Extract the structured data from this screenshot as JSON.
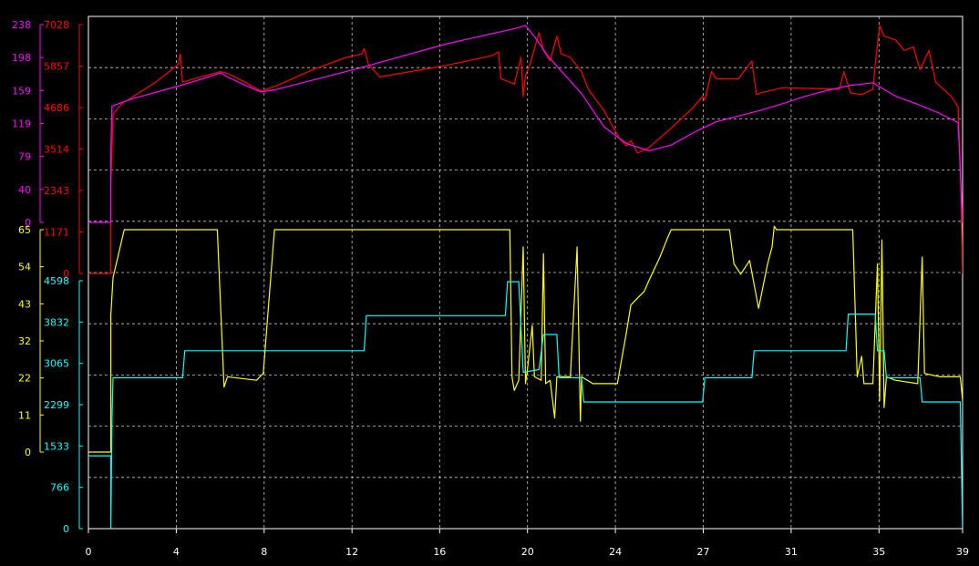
{
  "chart_data": {
    "type": "line",
    "background": "#000000",
    "grid": true,
    "x_axis": {
      "range": [
        0,
        39
      ],
      "ticks": [
        {
          "v": 0,
          "label": "0"
        },
        {
          "v": 3.92,
          "label": "4"
        },
        {
          "v": 7.84,
          "label": "8"
        },
        {
          "v": 11.76,
          "label": "12"
        },
        {
          "v": 15.67,
          "label": "16"
        },
        {
          "v": 19.59,
          "label": "20"
        },
        {
          "v": 23.51,
          "label": "24"
        },
        {
          "v": 27.43,
          "label": "27"
        },
        {
          "v": 31.35,
          "label": "31"
        },
        {
          "v": 35.27,
          "label": "35"
        },
        {
          "v": 39,
          "label": "39"
        }
      ]
    },
    "axes": [
      {
        "id": "ax1",
        "color": "#ff00ff",
        "range": [
          0,
          238
        ],
        "labels": [
          "0",
          "40",
          "79",
          "119",
          "159",
          "198",
          "238"
        ]
      },
      {
        "id": "ax2",
        "color": "#ff0000",
        "range": [
          0,
          7028
        ],
        "labels": [
          "0",
          "1171",
          "2343",
          "3514",
          "4686",
          "5857",
          "7028"
        ]
      },
      {
        "id": "ax3",
        "color": "#ffff00",
        "range": [
          0,
          65
        ],
        "labels": [
          "0",
          "11",
          "22",
          "32",
          "43",
          "54",
          "65"
        ]
      },
      {
        "id": "ax4",
        "color": "#00ffff",
        "range": [
          0,
          4598
        ],
        "labels": [
          "0",
          "766",
          "1533",
          "2299",
          "3065",
          "3832",
          "4598"
        ]
      }
    ],
    "series": [
      {
        "axis": "ax2",
        "color": "#ff0000",
        "points": [
          [
            0,
            0
          ],
          [
            1,
            0
          ],
          [
            1,
            2500
          ],
          [
            1.1,
            4500
          ],
          [
            1.5,
            4800
          ],
          [
            2,
            5000
          ],
          [
            3,
            5400
          ],
          [
            4,
            5900
          ],
          [
            4.1,
            6200
          ],
          [
            4.2,
            5400
          ],
          [
            5,
            5550
          ],
          [
            5.9,
            5700
          ],
          [
            6.2,
            5650
          ],
          [
            7,
            5400
          ],
          [
            7.7,
            5150
          ],
          [
            8.4,
            5300
          ],
          [
            10,
            5750
          ],
          [
            11.5,
            6100
          ],
          [
            12.2,
            6200
          ],
          [
            12.3,
            6350
          ],
          [
            12.5,
            5900
          ],
          [
            13,
            5550
          ],
          [
            16,
            5880
          ],
          [
            18,
            6150
          ],
          [
            18.3,
            6250
          ],
          [
            18.4,
            5500
          ],
          [
            19,
            5350
          ],
          [
            19.3,
            6100
          ],
          [
            19.4,
            5000
          ],
          [
            19.5,
            5600
          ],
          [
            19.7,
            5900
          ],
          [
            20.1,
            6800
          ],
          [
            20.3,
            6300
          ],
          [
            20.6,
            6000
          ],
          [
            20.9,
            6700
          ],
          [
            21.1,
            6200
          ],
          [
            21.5,
            6100
          ],
          [
            22,
            5700
          ],
          [
            22.3,
            5200
          ],
          [
            23,
            4600
          ],
          [
            23.7,
            3800
          ],
          [
            24,
            3600
          ],
          [
            24.2,
            3750
          ],
          [
            24.5,
            3400
          ],
          [
            25,
            3550
          ],
          [
            26,
            4100
          ],
          [
            27,
            4700
          ],
          [
            27.4,
            5000
          ],
          [
            27.5,
            4900
          ],
          [
            27.8,
            5700
          ],
          [
            28,
            5500
          ],
          [
            29,
            5500
          ],
          [
            29.6,
            6000
          ],
          [
            29.8,
            5050
          ],
          [
            30,
            5100
          ],
          [
            31,
            5250
          ],
          [
            33.5,
            5200
          ],
          [
            33.7,
            5700
          ],
          [
            34,
            5100
          ],
          [
            34.5,
            5050
          ],
          [
            35,
            5200
          ],
          [
            35.1,
            5900
          ],
          [
            35.3,
            7000
          ],
          [
            35.5,
            6700
          ],
          [
            36,
            6600
          ],
          [
            36.4,
            6300
          ],
          [
            36.8,
            6400
          ],
          [
            37.1,
            5750
          ],
          [
            37.5,
            6300
          ],
          [
            37.8,
            5400
          ],
          [
            38.5,
            5000
          ],
          [
            38.8,
            4700
          ],
          [
            38.9,
            3000
          ],
          [
            39,
            0
          ]
        ]
      },
      {
        "axis": "ax1",
        "color": "#ff00ff",
        "points": [
          [
            0,
            0
          ],
          [
            1,
            0
          ],
          [
            1,
            85
          ],
          [
            1.05,
            140
          ],
          [
            2,
            149
          ],
          [
            4,
            164
          ],
          [
            5,
            172
          ],
          [
            5.9,
            180
          ],
          [
            6.2,
            175
          ],
          [
            7,
            165
          ],
          [
            7.7,
            157
          ],
          [
            8.4,
            160
          ],
          [
            12,
            185
          ],
          [
            16,
            215
          ],
          [
            18,
            227
          ],
          [
            19,
            233
          ],
          [
            19.5,
            237
          ],
          [
            20,
            220
          ],
          [
            20.5,
            200
          ],
          [
            21,
            185
          ],
          [
            22,
            155
          ],
          [
            22.5,
            135
          ],
          [
            23,
            115
          ],
          [
            24,
            95
          ],
          [
            24.8,
            88
          ],
          [
            25,
            86
          ],
          [
            26,
            93
          ],
          [
            27,
            108
          ],
          [
            28,
            121
          ],
          [
            29,
            128
          ],
          [
            30,
            135
          ],
          [
            31,
            143
          ],
          [
            32,
            152
          ],
          [
            33,
            159
          ],
          [
            34,
            165
          ],
          [
            35,
            168
          ],
          [
            35.5,
            160
          ],
          [
            36,
            152
          ],
          [
            37,
            142
          ],
          [
            38,
            131
          ],
          [
            38.8,
            120
          ],
          [
            39,
            0
          ]
        ]
      },
      {
        "axis": "ax3",
        "color": "#ffff00",
        "points": [
          [
            0,
            0
          ],
          [
            1,
            0
          ],
          [
            1,
            40
          ],
          [
            1.1,
            51
          ],
          [
            1.6,
            65
          ],
          [
            5.75,
            65
          ],
          [
            6.05,
            19
          ],
          [
            6.2,
            22
          ],
          [
            7.5,
            21
          ],
          [
            7.8,
            23
          ],
          [
            8.3,
            65
          ],
          [
            18.8,
            65
          ],
          [
            18.9,
            22
          ],
          [
            19,
            18
          ],
          [
            19.2,
            21
          ],
          [
            19.4,
            60
          ],
          [
            19.5,
            20
          ],
          [
            19.6,
            25
          ],
          [
            19.8,
            37
          ],
          [
            19.9,
            22
          ],
          [
            20.2,
            21
          ],
          [
            20.3,
            58
          ],
          [
            20.4,
            20
          ],
          [
            20.6,
            21
          ],
          [
            20.8,
            10
          ],
          [
            20.9,
            22
          ],
          [
            21.5,
            22
          ],
          [
            21.8,
            60
          ],
          [
            21.95,
            9
          ],
          [
            22,
            22
          ],
          [
            22.5,
            20
          ],
          [
            23,
            20
          ],
          [
            23.6,
            20
          ],
          [
            24,
            35
          ],
          [
            24.2,
            43
          ],
          [
            24.5,
            45
          ],
          [
            24.8,
            47
          ],
          [
            25,
            50
          ],
          [
            25.5,
            57
          ],
          [
            25.8,
            62
          ],
          [
            26,
            65
          ],
          [
            28.6,
            65
          ],
          [
            28.8,
            55
          ],
          [
            29.1,
            52
          ],
          [
            29.5,
            56
          ],
          [
            29.9,
            42
          ],
          [
            30.3,
            55
          ],
          [
            30.5,
            60
          ],
          [
            30.6,
            66
          ],
          [
            30.7,
            65
          ],
          [
            34.1,
            65
          ],
          [
            34.3,
            22
          ],
          [
            34.5,
            28
          ],
          [
            34.6,
            20
          ],
          [
            35,
            20
          ],
          [
            35.2,
            55
          ],
          [
            35.3,
            15
          ],
          [
            35.4,
            62
          ],
          [
            35.5,
            13
          ],
          [
            35.6,
            22
          ],
          [
            36,
            21
          ],
          [
            37,
            20
          ],
          [
            37.2,
            57
          ],
          [
            37.3,
            23
          ],
          [
            38,
            22
          ],
          [
            38.9,
            22
          ],
          [
            39,
            15
          ]
        ]
      },
      {
        "axis": "ax4",
        "color": "#00ffff",
        "points": [
          [
            0,
            1350
          ],
          [
            1,
            1350
          ],
          [
            1,
            0
          ],
          [
            1.05,
            2000
          ],
          [
            1.1,
            2800
          ],
          [
            4.2,
            2800
          ],
          [
            4.3,
            3300
          ],
          [
            12.3,
            3300
          ],
          [
            12.4,
            3950
          ],
          [
            18.6,
            3950
          ],
          [
            18.7,
            4580
          ],
          [
            19.2,
            4580
          ],
          [
            19.4,
            2900
          ],
          [
            20.1,
            2950
          ],
          [
            20.3,
            3600
          ],
          [
            20.9,
            3600
          ],
          [
            21,
            2800
          ],
          [
            22,
            2800
          ],
          [
            22.1,
            2350
          ],
          [
            27.4,
            2350
          ],
          [
            27.5,
            2800
          ],
          [
            29.6,
            2800
          ],
          [
            29.7,
            3300
          ],
          [
            33.8,
            3300
          ],
          [
            33.9,
            3980
          ],
          [
            35.1,
            3980
          ],
          [
            35.2,
            3300
          ],
          [
            35.5,
            3300
          ],
          [
            35.6,
            2800
          ],
          [
            37.1,
            2800
          ],
          [
            37.2,
            2350
          ],
          [
            38.9,
            2350
          ],
          [
            38.95,
            1100
          ],
          [
            39,
            0
          ]
        ]
      }
    ]
  }
}
